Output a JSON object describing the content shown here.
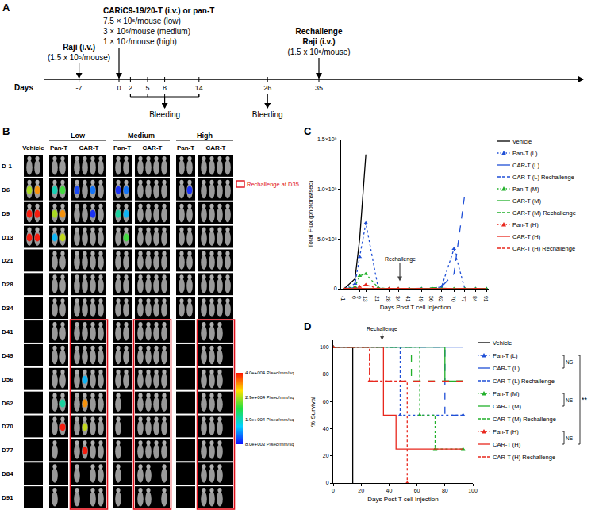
{
  "panel_labels": [
    "A",
    "B",
    "C",
    "D"
  ],
  "timeline": {
    "axis_label": "Days",
    "days": [
      -7,
      0,
      2,
      5,
      8,
      14,
      26,
      35
    ],
    "events": [
      {
        "day": -7,
        "title_lines": [
          "Raji (i.v.)"
        ],
        "detail_lines": [
          "(1.5 x 10⁵/mouse)"
        ]
      },
      {
        "day": 0,
        "title_lines": [
          "CARiC9-19/20-T (i.v.) or pan-T"
        ],
        "detail_lines": [
          "7.5 × 10⁵/mouse (low)",
          "3 × 10⁶/mouse (medium)",
          "1 × 10⁷/mouse (high)"
        ]
      },
      {
        "day": 35,
        "title_lines": [
          "Rechallenge",
          "Raji (i.v.)"
        ],
        "detail_lines": [
          "(1.5 x 10⁵/mouse)"
        ]
      }
    ],
    "samplings": [
      {
        "days": [
          2,
          5,
          8,
          14
        ],
        "label": "Bleeding"
      },
      {
        "days": [
          26
        ],
        "label": "Bleeding"
      }
    ]
  },
  "imaging": {
    "rows": [
      "D-1",
      "D6",
      "D9",
      "D13",
      "D21",
      "D28",
      "D34",
      "D41",
      "D49",
      "D56",
      "D62",
      "D70",
      "D77",
      "D84",
      "D91"
    ],
    "rechallenge": {
      "label": "Rechallenge at D35",
      "from_row": "D41"
    },
    "colorbar": {
      "range": [
        8000,
        40000
      ],
      "ticks": [
        {
          "value": 40000,
          "label": "4.0e+004 P/sec/mm/sq"
        },
        {
          "value": 29000,
          "label": "2.9e+004 P/sec/mm/sq"
        },
        {
          "value": 19000,
          "label": "1.9e+004 P/sec/mm/sq"
        },
        {
          "value": 8000,
          "label": "8.0e+003 P/sec/mm/sq"
        }
      ]
    },
    "columns": [
      {
        "group": null,
        "header": "Vehicle",
        "rechallenge": false,
        "signals": [
          [
            0,
            0
          ],
          [
            29000,
            35000
          ],
          [
            40000,
            40000
          ],
          [
            40000,
            40000
          ],
          [
            null,
            null
          ],
          [
            null,
            null
          ],
          [
            null,
            null
          ],
          [
            null,
            null
          ],
          [
            null,
            null
          ],
          [
            null,
            null
          ],
          [
            null,
            null
          ],
          [
            null,
            null
          ],
          [
            null,
            null
          ],
          [
            null,
            null
          ],
          [
            null,
            null
          ]
        ]
      },
      {
        "group": "Low",
        "header": "Pan-T",
        "rechallenge": false,
        "signals": [
          [
            0,
            0
          ],
          [
            19000,
            25000
          ],
          [
            29000,
            35000
          ],
          [
            15000,
            30000
          ],
          [
            0,
            0
          ],
          [
            0,
            0
          ],
          [
            0,
            0
          ],
          [
            0,
            0
          ],
          [
            0,
            0
          ],
          [
            0,
            0
          ],
          [
            0,
            20000
          ],
          [
            0,
            40000
          ],
          [
            0,
            null
          ],
          [
            0,
            null
          ],
          [
            0,
            null
          ]
        ]
      },
      {
        "group": "Low",
        "header": "CAR-T",
        "rechallenge": true,
        "signals": [
          [
            0,
            0,
            0,
            0
          ],
          [
            10000,
            0,
            12000,
            0
          ],
          [
            0,
            0,
            9000,
            0
          ],
          [
            0,
            0,
            0,
            0
          ],
          [
            0,
            0,
            0,
            0
          ],
          [
            0,
            0,
            0,
            0
          ],
          [
            0,
            0,
            0,
            0
          ],
          [
            0,
            0,
            0,
            0
          ],
          [
            0,
            0,
            0,
            0
          ],
          [
            0,
            15000,
            0,
            0
          ],
          [
            0,
            35000,
            0,
            0
          ],
          [
            0,
            30000,
            0,
            0
          ],
          [
            0,
            40000,
            0,
            0
          ],
          [
            0,
            null,
            0,
            0
          ],
          [
            0,
            null,
            0,
            0
          ]
        ]
      },
      {
        "group": "Medium",
        "header": "Pan-T",
        "rechallenge": false,
        "signals": [
          [
            0,
            0
          ],
          [
            9000,
            12000
          ],
          [
            20000,
            15000
          ],
          [
            0,
            25000
          ],
          [
            0,
            0
          ],
          [
            0,
            0
          ],
          [
            0,
            0
          ],
          [
            0,
            0
          ],
          [
            0,
            0
          ],
          [
            0,
            0
          ],
          [
            0,
            null
          ],
          [
            0,
            null
          ],
          [
            0,
            null
          ],
          [
            0,
            null
          ],
          [
            0,
            null
          ]
        ]
      },
      {
        "group": "Medium",
        "header": "CAR-T",
        "rechallenge": true,
        "signals": [
          [
            0,
            0,
            0,
            0
          ],
          [
            0,
            0,
            0,
            0
          ],
          [
            0,
            0,
            0,
            0
          ],
          [
            0,
            0,
            0,
            0
          ],
          [
            0,
            0,
            0,
            0
          ],
          [
            0,
            0,
            0,
            0
          ],
          [
            0,
            0,
            0,
            0
          ],
          [
            0,
            0,
            0,
            0
          ],
          [
            0,
            0,
            0,
            0
          ],
          [
            0,
            0,
            0,
            0
          ],
          [
            0,
            0,
            0,
            0
          ],
          [
            0,
            0,
            0,
            0
          ],
          [
            0,
            0,
            0,
            0
          ],
          [
            0,
            0,
            null,
            0
          ],
          [
            0,
            0,
            null,
            0
          ]
        ]
      },
      {
        "group": "High",
        "header": "Pan-T",
        "rechallenge": false,
        "signals": [
          [
            0,
            0
          ],
          [
            0,
            9000
          ],
          [
            0,
            0
          ],
          [
            0,
            0
          ],
          [
            0,
            0
          ],
          [
            0,
            0
          ],
          [
            0,
            0
          ],
          [
            null,
            null
          ],
          [
            null,
            null
          ],
          [
            null,
            null
          ],
          [
            null,
            null
          ],
          [
            null,
            null
          ],
          [
            null,
            null
          ],
          [
            null,
            null
          ],
          [
            null,
            null
          ]
        ]
      },
      {
        "group": "High",
        "header": "CAR-T",
        "rechallenge": true,
        "signals": [
          [
            0,
            0,
            0,
            0
          ],
          [
            0,
            0,
            0,
            0
          ],
          [
            0,
            0,
            0,
            0
          ],
          [
            0,
            0,
            0,
            0
          ],
          [
            0,
            0,
            0,
            0
          ],
          [
            0,
            0,
            0,
            0
          ],
          [
            0,
            0,
            0,
            0
          ],
          [
            0,
            0,
            0,
            null
          ],
          [
            0,
            0,
            0,
            null
          ],
          [
            0,
            0,
            0,
            null
          ],
          [
            0,
            0,
            0,
            null
          ],
          [
            0,
            0,
            0,
            null
          ],
          [
            0,
            0,
            0,
            null
          ],
          [
            0,
            0,
            0,
            null
          ],
          [
            0,
            0,
            0,
            null
          ]
        ]
      }
    ]
  },
  "chart_data": [
    {
      "type": "line",
      "x_label": "Days Post T cell Injection",
      "y_label": "Total Flux (photons/sec)",
      "legend": "right",
      "grid": false,
      "x": [
        -1,
        6,
        9,
        13,
        21,
        28,
        34,
        41,
        49,
        56,
        62,
        70,
        77,
        84,
        91
      ],
      "xlim": [
        -3,
        93
      ],
      "xticks": [
        -1,
        6,
        9,
        13,
        21,
        28,
        34,
        41,
        49,
        56,
        62,
        70,
        77,
        84,
        91
      ],
      "ylim": [
        0,
        1500000000
      ],
      "yticks": [
        0,
        {
          "value": 500000000,
          "label": "5.0×10⁸"
        },
        {
          "value": 1000000000,
          "label": "1.0×10⁹"
        },
        {
          "value": 1500000000,
          "label": "1.5×10⁹"
        }
      ],
      "annotations": [
        {
          "text": "Rechallenge",
          "x": 35
        }
      ],
      "series": [
        {
          "name": "Vehicle",
          "color": "#000000",
          "line_style": "solid",
          "values": [
            0,
            100000000,
            500000000,
            1350000000,
            null,
            null,
            null,
            null,
            null,
            null,
            null,
            null,
            null,
            null,
            null
          ]
        },
        {
          "name": "Pan-T (L)",
          "color": "#1f4fd6",
          "line_style": "dotted",
          "marker": "triangle",
          "values": [
            0,
            50000000,
            320000000,
            660000000,
            5000000,
            0,
            0,
            0,
            0,
            0,
            20000000,
            400000000,
            0,
            0,
            0
          ]
        },
        {
          "name": "CAR-T (L)",
          "color": "#1f4fd6",
          "line_style": "solid",
          "values": [
            0,
            10000000,
            3000000,
            0,
            0,
            0,
            0,
            0,
            0,
            0,
            0,
            0,
            0,
            0,
            0
          ]
        },
        {
          "name": "CAR-T (L) Rechallenge",
          "color": "#1f4fd6",
          "line_style": "dashed",
          "values": [
            0,
            10000000,
            5000000,
            0,
            0,
            0,
            0,
            0,
            0,
            5000000,
            20000000,
            150000000,
            950000000,
            null,
            null
          ]
        },
        {
          "name": "Pan-T (M)",
          "color": "#21b02a",
          "line_style": "dotted",
          "marker": "triangle",
          "values": [
            0,
            20000000,
            130000000,
            150000000,
            10000000,
            0,
            0,
            0,
            0,
            0,
            0,
            0,
            0,
            0,
            0
          ]
        },
        {
          "name": "CAR-T (M)",
          "color": "#21b02a",
          "line_style": "solid",
          "values": [
            0,
            0,
            0,
            0,
            0,
            0,
            0,
            0,
            0,
            0,
            0,
            0,
            0,
            0,
            0
          ]
        },
        {
          "name": "CAR-T (M) Rechallenge",
          "color": "#21b02a",
          "line_style": "dashed",
          "values": [
            0,
            0,
            0,
            0,
            0,
            0,
            0,
            0,
            0,
            10000000,
            5000000,
            0,
            0,
            0,
            0
          ]
        },
        {
          "name": "Pan-T (H)",
          "color": "#e8271d",
          "line_style": "dotted",
          "marker": "triangle",
          "values": [
            0,
            5000000,
            20000000,
            40000000,
            0,
            0,
            0,
            null,
            null,
            null,
            null,
            null,
            null,
            null,
            null
          ]
        },
        {
          "name": "CAR-T (H)",
          "color": "#e8271d",
          "line_style": "solid",
          "values": [
            0,
            0,
            0,
            0,
            0,
            0,
            0,
            0,
            0,
            0,
            0,
            0,
            0,
            0,
            0
          ]
        },
        {
          "name": "CAR-T (H) Rechallenge",
          "color": "#e8271d",
          "line_style": "dashed",
          "values": [
            0,
            0,
            0,
            0,
            0,
            0,
            0,
            0,
            0,
            0,
            0,
            0,
            0,
            0,
            0
          ]
        }
      ]
    },
    {
      "type": "step",
      "x_label": "Days Post T cell Injection",
      "y_label": "% Survival",
      "legend": "right",
      "grid": false,
      "xlim": [
        0,
        100
      ],
      "xticks": [
        0,
        20,
        40,
        60,
        80,
        100
      ],
      "ylim": [
        0,
        105
      ],
      "yticks": [
        0,
        20,
        40,
        60,
        80,
        100
      ],
      "annotations": [
        {
          "text": "Rechallenge",
          "x": 35
        },
        {
          "text": "NS",
          "between": [
            "Pan-T (L)",
            "CAR-T (L)"
          ]
        },
        {
          "text": "NS",
          "between": [
            "Pan-T (M)",
            "CAR-T (M)"
          ]
        },
        {
          "text": "NS",
          "between": [
            "Pan-T (H)",
            "CAR-T (H)"
          ]
        },
        {
          "text": "**",
          "between": [
            "Pan-T (L)",
            "CAR-T (H)"
          ]
        }
      ],
      "series": [
        {
          "name": "Vehicle",
          "color": "#000000",
          "line_style": "solid",
          "x": [
            0,
            14
          ],
          "values": [
            100,
            0
          ]
        },
        {
          "name": "Pan-T (L)",
          "color": "#1f4fd6",
          "line_style": "dotted",
          "marker": "triangle",
          "x": [
            0,
            48,
            93
          ],
          "values": [
            100,
            50,
            50
          ]
        },
        {
          "name": "CAR-T (L)",
          "color": "#1f4fd6",
          "line_style": "solid",
          "x": [
            0,
            93
          ],
          "values": [
            100,
            100
          ]
        },
        {
          "name": "CAR-T (L) Rechallenge",
          "color": "#1f4fd6",
          "line_style": "dashed",
          "x": [
            0,
            80,
            93
          ],
          "values": [
            100,
            50,
            50
          ]
        },
        {
          "name": "Pan-T (M)",
          "color": "#21b02a",
          "line_style": "dotted",
          "marker": "triangle",
          "x": [
            0,
            62,
            73,
            93
          ],
          "values": [
            100,
            50,
            25,
            25
          ]
        },
        {
          "name": "CAR-T (M)",
          "color": "#21b02a",
          "line_style": "solid",
          "x": [
            0,
            80,
            93
          ],
          "values": [
            100,
            75,
            75
          ]
        },
        {
          "name": "CAR-T (M) Rechallenge",
          "color": "#21b02a",
          "line_style": "dashed",
          "x": [
            0,
            56,
            93
          ],
          "values": [
            100,
            75,
            75
          ]
        },
        {
          "name": "Pan-T (H)",
          "color": "#e8271d",
          "line_style": "dotted",
          "marker": "triangle",
          "x": [
            0,
            26,
            53
          ],
          "values": [
            100,
            75,
            0
          ]
        },
        {
          "name": "CAR-T (H)",
          "color": "#e8271d",
          "line_style": "solid",
          "x": [
            0,
            36,
            45,
            93
          ],
          "values": [
            100,
            50,
            25,
            25
          ]
        },
        {
          "name": "CAR-T (H) Rechallenge",
          "color": "#e8271d",
          "line_style": "dashed",
          "x": [
            0,
            26,
            93
          ],
          "values": [
            100,
            75,
            75
          ]
        }
      ]
    }
  ]
}
